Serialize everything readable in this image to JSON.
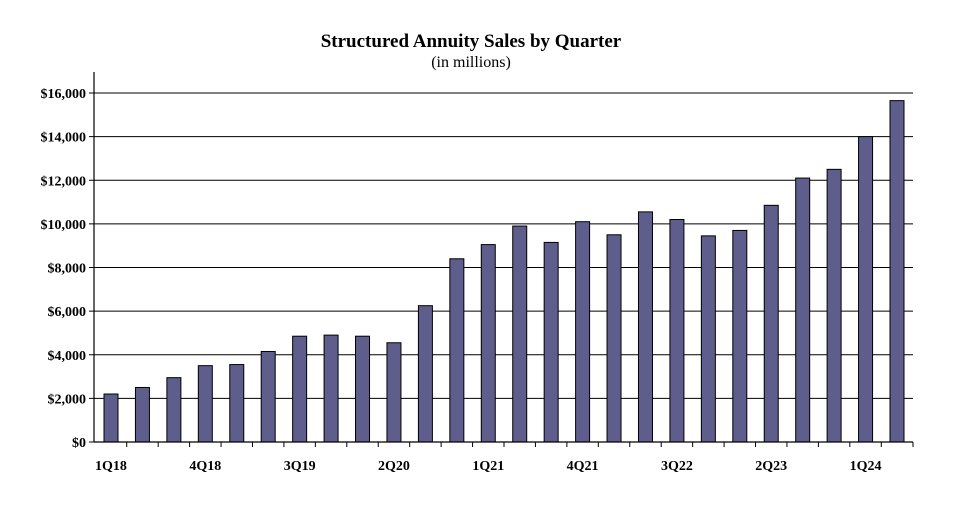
{
  "chart_data": {
    "type": "bar",
    "title": "Structured Annuity Sales by Quarter",
    "subtitle": "(in millions)",
    "xlabel": "",
    "ylabel": "",
    "ylim": [
      0,
      16000
    ],
    "y_ticks": [
      0,
      2000,
      4000,
      6000,
      8000,
      10000,
      12000,
      14000,
      16000
    ],
    "y_tick_labels": [
      "$0",
      "$2,000",
      "$4,000",
      "$6,000",
      "$8,000",
      "$10,000",
      "$12,000",
      "$14,000",
      "$16,000"
    ],
    "categories": [
      "1Q18",
      "2Q18",
      "3Q18",
      "4Q18",
      "1Q19",
      "2Q19",
      "3Q19",
      "4Q19",
      "1Q20",
      "2Q20",
      "3Q20",
      "4Q20",
      "1Q21",
      "2Q21",
      "3Q21",
      "4Q21",
      "1Q22",
      "2Q22",
      "3Q22",
      "4Q22",
      "1Q23",
      "2Q23",
      "3Q23",
      "4Q23",
      "1Q24",
      "2Q24"
    ],
    "x_tick_labels": [
      "1Q18",
      "",
      "",
      "4Q18",
      "",
      "",
      "3Q19",
      "",
      "",
      "2Q20",
      "",
      "",
      "1Q21",
      "",
      "",
      "4Q21",
      "",
      "",
      "3Q22",
      "",
      "",
      "2Q23",
      "",
      "",
      "1Q24",
      ""
    ],
    "values": [
      2200,
      2500,
      2950,
      3500,
      3550,
      4150,
      4850,
      4900,
      4850,
      4550,
      6250,
      8400,
      9050,
      9900,
      9150,
      10100,
      9500,
      10550,
      10200,
      9450,
      9700,
      10850,
      12100,
      12500,
      14000,
      15650
    ],
    "bar_color": "#5f5d8c",
    "grid": true,
    "legend": "none"
  }
}
